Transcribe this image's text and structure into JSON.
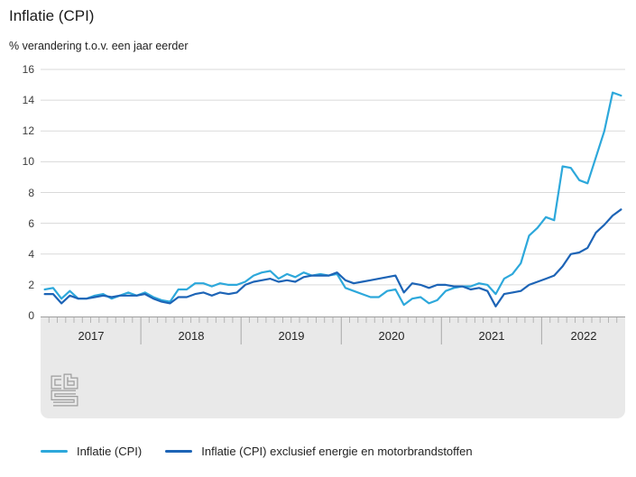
{
  "title": "Inflatie (CPI)",
  "subtitle": "% verandering t.o.v. een jaar eerder",
  "brand": {
    "logo_name": "cbs-logo",
    "logo_color": "#9c9c9c"
  },
  "colors": {
    "cpi_line": "#2DA8DB",
    "core_line": "#1D64B6",
    "gridline": "#dadada",
    "axis_band_bg": "#e9e9e9",
    "axis_band_border": "#9f9f9f",
    "month_tick": "#b5b5b5",
    "year_separator": "#a9a9a9"
  },
  "chart_data": {
    "type": "line",
    "title": "Inflatie (CPI)",
    "ylabel": "% verandering t.o.v. een jaar eerder",
    "xlabel": "",
    "x_start": "2017-01",
    "x_end": "2022-10",
    "year_labels": [
      "2017",
      "2018",
      "2019",
      "2020",
      "2021",
      "2022"
    ],
    "months_per_year": 12,
    "ylim": [
      0,
      16
    ],
    "yticks": [
      0,
      2,
      4,
      6,
      8,
      10,
      12,
      14,
      16
    ],
    "grid": true,
    "legend_position": "bottom",
    "series": [
      {
        "name": "Inflatie (CPI)",
        "color": "#2DA8DB",
        "values": [
          1.7,
          1.8,
          1.1,
          1.6,
          1.1,
          1.1,
          1.3,
          1.4,
          1.1,
          1.3,
          1.5,
          1.3,
          1.5,
          1.2,
          1.0,
          0.9,
          1.7,
          1.7,
          2.1,
          2.1,
          1.9,
          2.1,
          2.0,
          2.0,
          2.2,
          2.6,
          2.8,
          2.9,
          2.4,
          2.7,
          2.5,
          2.8,
          2.6,
          2.7,
          2.6,
          2.7,
          1.8,
          1.6,
          1.4,
          1.2,
          1.2,
          1.6,
          1.7,
          0.7,
          1.1,
          1.2,
          0.8,
          1.0,
          1.6,
          1.8,
          1.9,
          1.9,
          2.1,
          2.0,
          1.4,
          2.4,
          2.7,
          3.4,
          5.2,
          5.7,
          6.4,
          6.2,
          9.7,
          9.6,
          8.8,
          8.6,
          10.3,
          12.0,
          14.5,
          14.3
        ]
      },
      {
        "name": "Inflatie (CPI) exclusief energie en motorbrandstoffen",
        "color": "#1D64B6",
        "values": [
          1.4,
          1.4,
          0.8,
          1.3,
          1.1,
          1.1,
          1.2,
          1.3,
          1.2,
          1.3,
          1.3,
          1.3,
          1.4,
          1.1,
          0.9,
          0.8,
          1.2,
          1.2,
          1.4,
          1.5,
          1.3,
          1.5,
          1.4,
          1.5,
          2.0,
          2.2,
          2.3,
          2.4,
          2.2,
          2.3,
          2.2,
          2.5,
          2.6,
          2.6,
          2.6,
          2.8,
          2.3,
          2.1,
          2.2,
          2.3,
          2.4,
          2.5,
          2.6,
          1.5,
          2.1,
          2.0,
          1.8,
          2.0,
          2.0,
          1.9,
          1.9,
          1.7,
          1.8,
          1.6,
          0.6,
          1.4,
          1.5,
          1.6,
          2.0,
          2.2,
          2.4,
          2.6,
          3.2,
          4.0,
          4.1,
          4.4,
          5.4,
          5.9,
          6.5,
          6.9
        ]
      }
    ]
  }
}
